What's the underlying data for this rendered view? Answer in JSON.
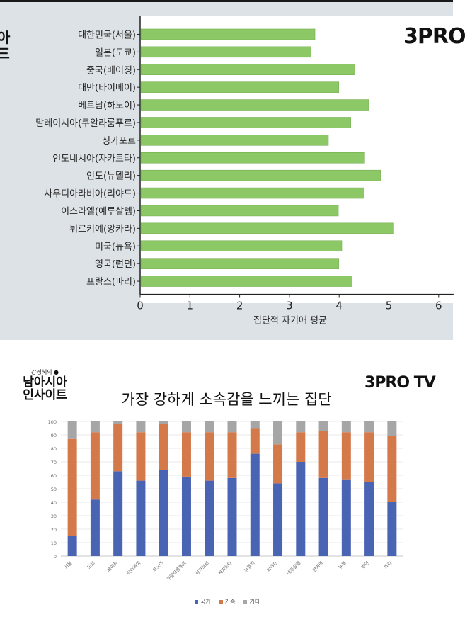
{
  "top_panel": {
    "logo_brand": "3PRO",
    "brush_logo_fragment": "아"
  },
  "bottom_panel": {
    "title": "가장 강하게 소속감을 느끼는 집단",
    "logo_brand": "3PRO TV",
    "brush_logo_small": "강정혜의",
    "brush_logo_line1": "남아시아",
    "brush_logo_line2": "인사이트"
  },
  "chart_data": [
    {
      "type": "bar",
      "orientation": "horizontal",
      "title": "",
      "xlabel": "집단적 자기애 평균",
      "ylabel": "",
      "xlim": [
        0,
        6.3
      ],
      "xticks": [
        0,
        1,
        2,
        3,
        4,
        5,
        6
      ],
      "grid": false,
      "bar_color": "#8dc866",
      "categories": [
        "대한민국(서울)",
        "일본(도쿄)",
        "중국(베이징)",
        "대만(타이베이)",
        "베트남(하노이)",
        "말레이시아(쿠알라룸푸르)",
        "싱가포르",
        "인도네시아(자카르타)",
        "인도(뉴델리)",
        "사우디아라비아(리야드)",
        "이스라엘(예루살렘)",
        "튀르키예(앙카라)",
        "미국(뉴욕)",
        "영국(런던)",
        "프랑스(파리)"
      ],
      "values": [
        3.5,
        3.42,
        4.3,
        3.98,
        4.58,
        4.22,
        3.77,
        4.5,
        4.82,
        4.49,
        3.97,
        5.07,
        4.04,
        3.98,
        4.25
      ]
    },
    {
      "type": "bar",
      "orientation": "vertical",
      "stacked": true,
      "title": "가장 강하게 소속감을 느끼는 집단",
      "ylim": [
        0,
        100
      ],
      "yticks": [
        0,
        10,
        20,
        30,
        40,
        50,
        60,
        70,
        80,
        90,
        100
      ],
      "grid": true,
      "legend_position": "bottom",
      "categories": [
        "서울",
        "도쿄",
        "베이징",
        "타이베이",
        "하노이",
        "쿠알라룸푸르",
        "싱가포르",
        "자카르타",
        "뉴델리",
        "리야드",
        "예루살렘",
        "앙카라",
        "뉴욕",
        "런던",
        "파리"
      ],
      "series": [
        {
          "name": "국가",
          "color": "#4a64b4",
          "values": [
            15,
            42,
            63,
            56,
            64,
            59,
            56,
            58,
            76,
            54,
            70,
            58,
            57,
            55,
            40
          ]
        },
        {
          "name": "가족",
          "color": "#d4794a",
          "values": [
            72,
            50,
            35,
            36,
            34,
            33,
            36,
            34,
            19,
            29,
            22,
            35,
            35,
            37,
            49
          ]
        },
        {
          "name": "기타",
          "color": "#a6a6a6",
          "values": [
            13,
            8,
            2,
            8,
            2,
            8,
            8,
            8,
            5,
            17,
            8,
            7,
            8,
            8,
            11
          ]
        }
      ]
    }
  ]
}
